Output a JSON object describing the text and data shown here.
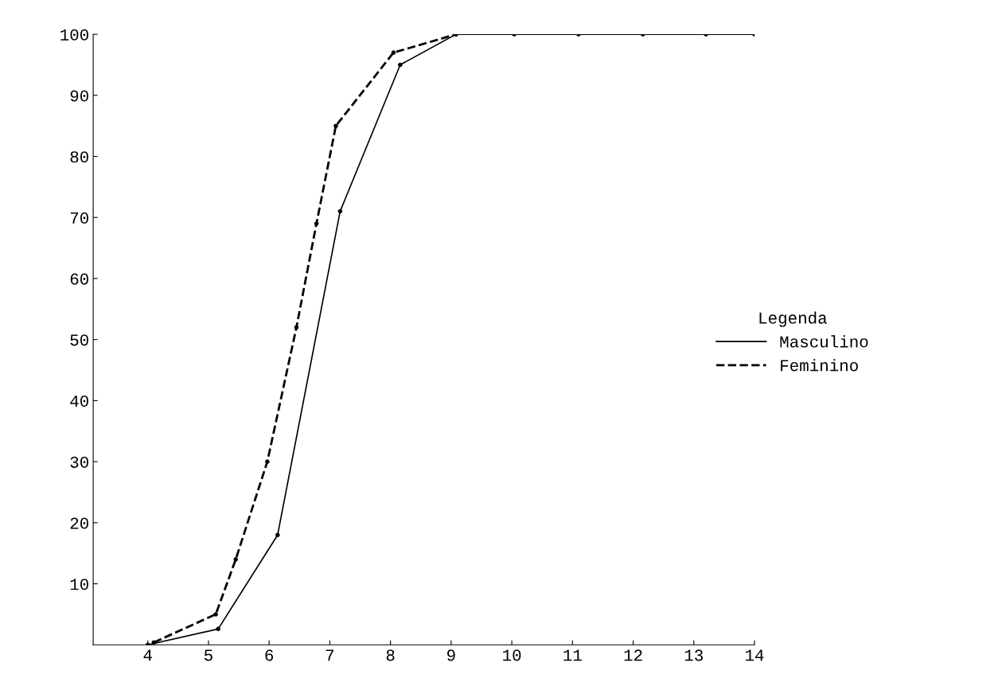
{
  "chart_data": {
    "type": "line",
    "legend_title": "Legenda",
    "legend": "right",
    "marker": "circle",
    "grid": false,
    "xlim": [
      3.1,
      14
    ],
    "xticks": [
      4,
      5,
      6,
      7,
      8,
      9,
      10,
      11,
      12,
      13,
      14
    ],
    "ylim": [
      0,
      100
    ],
    "yticks": [
      10,
      20,
      30,
      40,
      50,
      60,
      70,
      80,
      90,
      100
    ],
    "series": [
      {
        "name": "Masculino",
        "color": "#000000",
        "line_style": "solid",
        "x": [
          4,
          5.16,
          6.14,
          7.17,
          8.16,
          9.08,
          10.04,
          11.1,
          12.16,
          13.2,
          14
        ],
        "values": [
          0,
          2.6,
          18,
          71,
          95,
          100,
          100,
          100,
          100,
          100,
          100
        ]
      },
      {
        "name": "Feminino",
        "color": "#000000",
        "line_style": "dashed",
        "x": [
          4.1,
          5.12,
          5.45,
          5.97,
          6.45,
          6.78,
          7.1,
          8.05,
          9.08
        ],
        "values": [
          0.4,
          5,
          14,
          30,
          52,
          69,
          85,
          97,
          100
        ]
      }
    ]
  }
}
